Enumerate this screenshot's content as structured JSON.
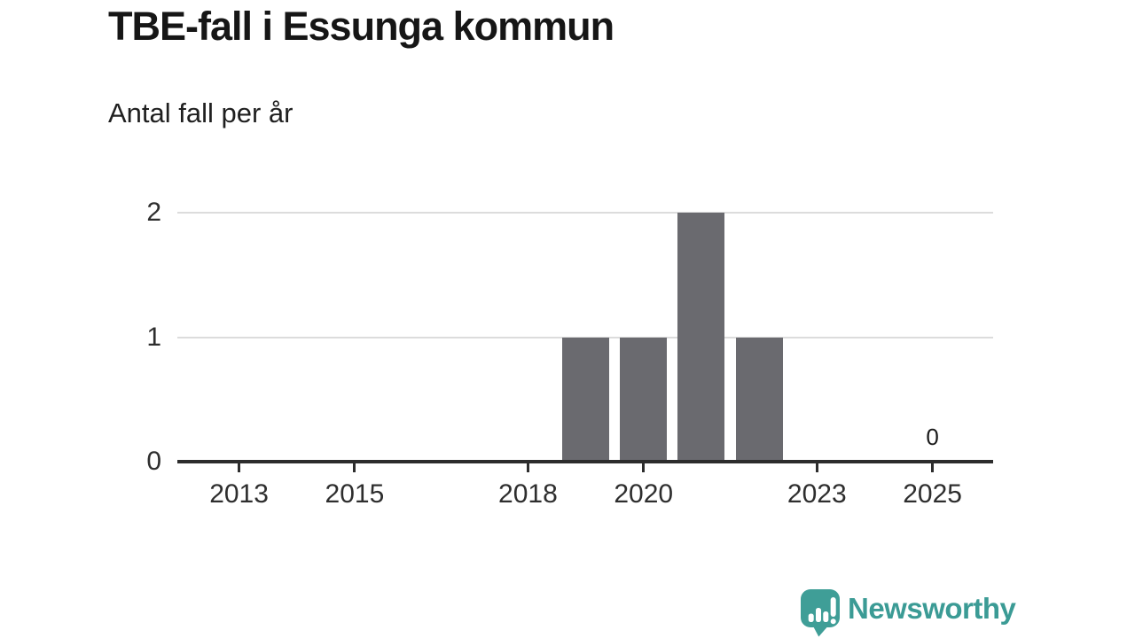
{
  "header": {
    "title": "TBE-fall i Essunga kommun",
    "subtitle": "Antal fall per år"
  },
  "chart_data": {
    "type": "bar",
    "title": "TBE-fall i Essunga kommun",
    "subtitle": "Antal fall per år",
    "categories": [
      2012,
      2013,
      2014,
      2015,
      2016,
      2017,
      2018,
      2019,
      2020,
      2021,
      2022,
      2023,
      2024,
      2025
    ],
    "values": [
      0,
      0,
      0,
      0,
      0,
      0,
      0,
      1,
      1,
      2,
      1,
      0,
      0,
      0
    ],
    "x_tick_labels": [
      "2013",
      "2015",
      "2018",
      "2020",
      "2023",
      "2025"
    ],
    "y_ticks": [
      0,
      1,
      2
    ],
    "ylim": [
      0,
      2
    ],
    "grid": true,
    "legend": "none",
    "annotations": [
      {
        "category": 2025,
        "text": "0"
      }
    ],
    "bar_color": "#6a6a6f",
    "grid_color": "#dcdcdc",
    "axis_color": "#2d2d2d",
    "tick_label_color": "#2e2e2e"
  },
  "branding": {
    "logo_text": "Newsworthy",
    "logo_color": "#3b9b95",
    "logo_icon": "newsworthy-speech-bubble-bar-chart-icon"
  }
}
